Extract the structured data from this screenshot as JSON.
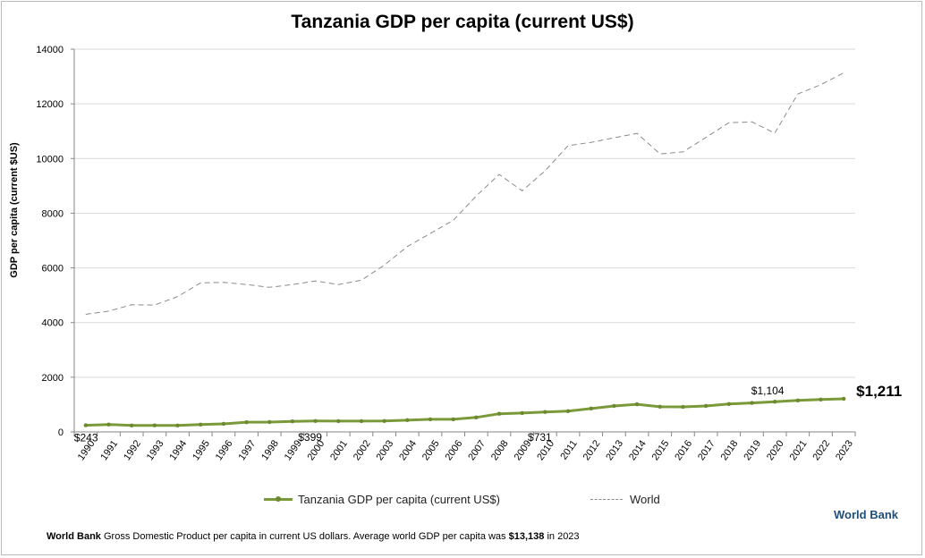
{
  "chart_data": {
    "type": "line",
    "title": "Tanzania GDP per capita (current US$)",
    "ylabel": "GDP per capita (current $US)",
    "xlabel": "",
    "ylim": [
      0,
      14000
    ],
    "yticks": [
      "0",
      "2000",
      "4000",
      "6000",
      "8000",
      "10000",
      "12000",
      "14000"
    ],
    "grid": true,
    "legend_position": "bottom",
    "categories": [
      "1990",
      "1991",
      "1992",
      "1993",
      "1994",
      "1995",
      "1996",
      "1997",
      "1998",
      "1999",
      "2000",
      "2001",
      "2002",
      "2003",
      "2004",
      "2005",
      "2006",
      "2007",
      "2008",
      "2009",
      "2010",
      "2011",
      "2012",
      "2013",
      "2014",
      "2015",
      "2016",
      "2017",
      "2018",
      "2019",
      "2020",
      "2021",
      "2022",
      "2023"
    ],
    "series": [
      {
        "name": "Tanzania GDP per capita (current US$)",
        "color": "#7a9a3a",
        "values": [
          243,
          270,
          235,
          240,
          235,
          268,
          295,
          355,
          360,
          385,
          399,
          395,
          395,
          400,
          430,
          460,
          460,
          530,
          665,
          690,
          731,
          760,
          855,
          950,
          1010,
          920,
          915,
          950,
          1020,
          1060,
          1104,
          1150,
          1185,
          1211
        ]
      },
      {
        "name": "World",
        "color": "#8a8a8a",
        "dashed": true,
        "values": [
          4300,
          4420,
          4650,
          4640,
          4950,
          5450,
          5470,
          5390,
          5290,
          5390,
          5520,
          5390,
          5550,
          6100,
          6780,
          7260,
          7740,
          8630,
          9420,
          8820,
          9550,
          10470,
          10590,
          10760,
          10920,
          10170,
          10240,
          10770,
          11310,
          11340,
          10930,
          12360,
          12700,
          13138
        ]
      }
    ],
    "annotations": [
      {
        "label": "$243",
        "index": 0,
        "series": 0
      },
      {
        "label": "$399",
        "index": 10,
        "series": 0
      },
      {
        "label": "$731",
        "index": 20,
        "series": 0
      },
      {
        "label": "$1,104",
        "index": 30,
        "series": 0
      },
      {
        "label": "$1,211",
        "index": 33,
        "series": 0,
        "emphasis": true
      }
    ]
  },
  "legend": {
    "main": "Tanzania GDP per capita (current US$)",
    "world": "World"
  },
  "brand": "World Bank",
  "footnote": {
    "source": "World Bank",
    "text": "Gross Domestic Product per capita in current US dollars.  Average world GDP per capita was",
    "value": "$13,138",
    "suffix": "in 2023"
  }
}
